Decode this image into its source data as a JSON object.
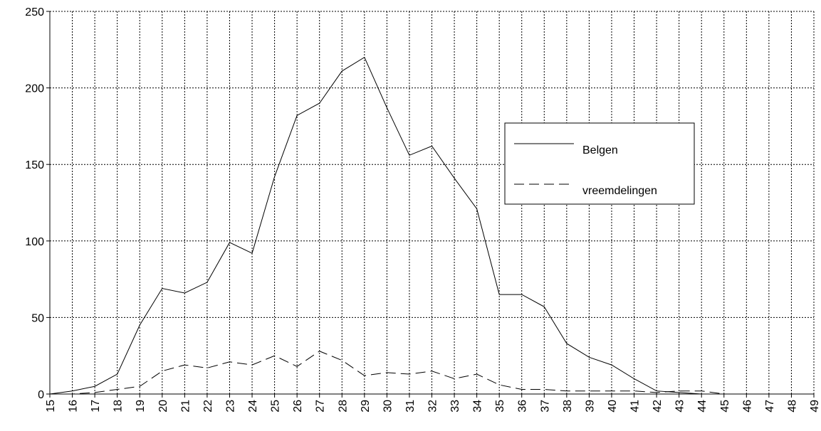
{
  "chart_data": {
    "type": "line",
    "categories": [
      "15",
      "16",
      "17",
      "18",
      "19",
      "20",
      "21",
      "22",
      "23",
      "24",
      "25",
      "26",
      "27",
      "28",
      "29",
      "30",
      "31",
      "32",
      "33",
      "34",
      "35",
      "36",
      "37",
      "38",
      "39",
      "40",
      "41",
      "42",
      "43",
      "44",
      "45",
      "46",
      "47",
      "48",
      "49"
    ],
    "series": [
      {
        "name": "Belgen",
        "color": "#000000",
        "style": "solid",
        "values": [
          0,
          2,
          5,
          13,
          45,
          69,
          66,
          73,
          99,
          92,
          142,
          182,
          190,
          211,
          220,
          187,
          156,
          162,
          141,
          121,
          65,
          65,
          57,
          33,
          24,
          19,
          10,
          2,
          1,
          0,
          0,
          0,
          0,
          0,
          0
        ]
      },
      {
        "name": "vreemdelingen",
        "color": "#000000",
        "style": "dashed",
        "values": [
          0,
          0,
          1,
          3,
          5,
          15,
          19,
          17,
          21,
          19,
          25,
          18,
          28,
          22,
          12,
          14,
          13,
          15,
          10,
          13,
          6,
          3,
          3,
          2,
          2,
          2,
          2,
          1,
          2,
          2,
          0,
          0,
          0,
          0,
          0
        ]
      }
    ],
    "ylim": [
      0,
      250
    ],
    "yticks": [
      0,
      50,
      100,
      150,
      200,
      250
    ],
    "grid": true
  }
}
